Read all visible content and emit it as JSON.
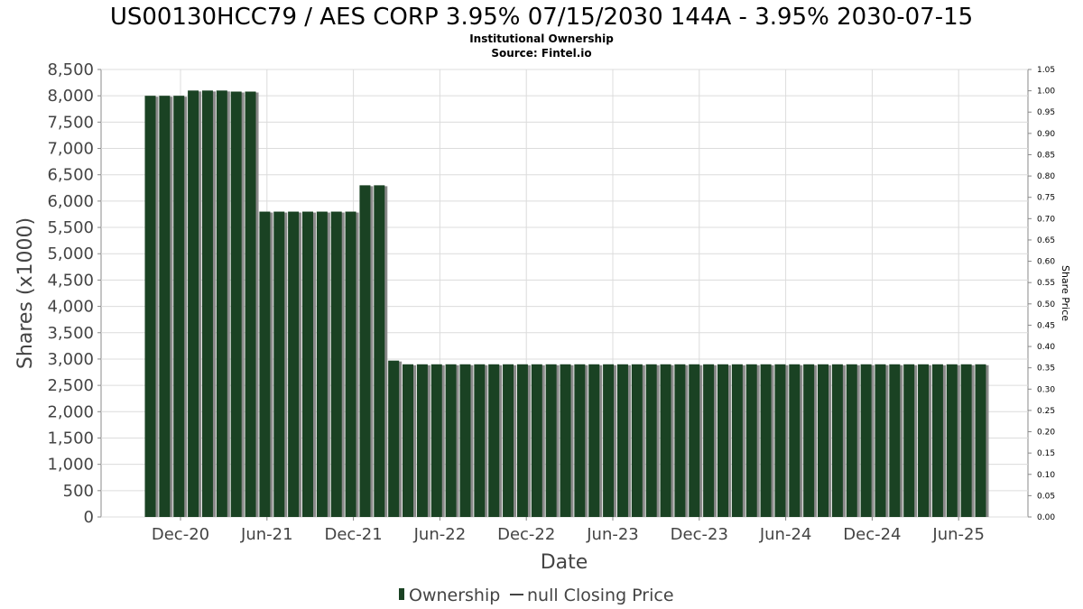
{
  "chart_data": {
    "type": "bar",
    "title": "US00130HCC79 / AES CORP 3.95% 07/15/2030 144A - 3.95% 2030-07-15",
    "subtitle": "Institutional Ownership",
    "source": "Source: Fintel.io",
    "xlabel": "Date",
    "ylabel": "Shares (x1000)",
    "y2label": "Share Price",
    "ylim": [
      0,
      8500
    ],
    "y2lim": [
      0,
      1.05
    ],
    "yticks": [
      "0",
      "500",
      "1,000",
      "1,500",
      "2,000",
      "2,500",
      "3,000",
      "3,500",
      "4,000",
      "4,500",
      "5,000",
      "5,500",
      "6,000",
      "6,500",
      "7,000",
      "7,500",
      "8,000",
      "8,500"
    ],
    "y2ticks": [
      "0.00",
      "0.05",
      "0.10",
      "0.15",
      "0.20",
      "0.25",
      "0.30",
      "0.35",
      "0.40",
      "0.45",
      "0.50",
      "0.55",
      "0.60",
      "0.65",
      "0.70",
      "0.75",
      "0.80",
      "0.85",
      "0.90",
      "0.95",
      "1.00",
      "1.05"
    ],
    "xticks": [
      "Dec-20",
      "Jun-21",
      "Dec-21",
      "Jun-22",
      "Dec-22",
      "Jun-23",
      "Dec-23",
      "Jun-24",
      "Dec-24",
      "Jun-25"
    ],
    "grid": true,
    "legend_position": "bottom",
    "series": [
      {
        "name": "Ownership",
        "color": "#1a4223",
        "values": [
          8000,
          8000,
          8000,
          8100,
          8100,
          8100,
          8080,
          8080,
          5800,
          5800,
          5800,
          5800,
          5800,
          5800,
          5800,
          6300,
          6300,
          2970,
          2900,
          2900,
          2900,
          2900,
          2900,
          2900,
          2900,
          2900,
          2900,
          2900,
          2900,
          2900,
          2900,
          2900,
          2900,
          2900,
          2900,
          2900,
          2900,
          2900,
          2900,
          2900,
          2900,
          2900,
          2900,
          2900,
          2900,
          2900,
          2900,
          2900,
          2900,
          2900,
          2900,
          2900,
          2900,
          2900,
          2900,
          2900,
          2900,
          2900,
          2900
        ]
      },
      {
        "name": "null Closing Price",
        "color": "#444444",
        "values": []
      }
    ]
  }
}
